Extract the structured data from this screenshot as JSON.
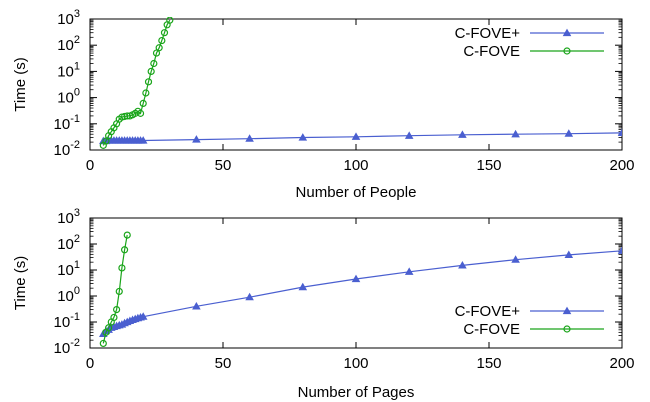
{
  "chart_data": [
    {
      "type": "line",
      "xlabel": "Number of People",
      "ylabel": "Time (s)",
      "yscale": "log",
      "xlim": [
        0,
        200
      ],
      "ylim": [
        0.01,
        1000
      ],
      "x_ticks": [
        "0",
        "50",
        "100",
        "150",
        "200"
      ],
      "y_ticks": [
        {
          "base": "10",
          "exp": "-2"
        },
        {
          "base": "10",
          "exp": "-1"
        },
        {
          "base": "10",
          "exp": "0"
        },
        {
          "base": "10",
          "exp": "1"
        },
        {
          "base": "10",
          "exp": "2"
        },
        {
          "base": "10",
          "exp": "3"
        }
      ],
      "legend_position": "top-right",
      "grid": false,
      "series": [
        {
          "name": "C-FOVE+",
          "color": "#4a5fd0",
          "marker": "triangle",
          "x": [
            5,
            6,
            7,
            8,
            9,
            10,
            11,
            12,
            13,
            14,
            15,
            16,
            17,
            18,
            19,
            20,
            40,
            60,
            80,
            100,
            120,
            140,
            160,
            180,
            200
          ],
          "y": [
            0.022,
            0.022,
            0.023,
            0.023,
            0.023,
            0.023,
            0.023,
            0.023,
            0.023,
            0.023,
            0.023,
            0.023,
            0.023,
            0.023,
            0.023,
            0.023,
            0.025,
            0.027,
            0.03,
            0.032,
            0.035,
            0.038,
            0.04,
            0.042,
            0.045
          ]
        },
        {
          "name": "C-FOVE",
          "color": "#1aa51a",
          "marker": "circle",
          "x": [
            5,
            6,
            7,
            8,
            9,
            10,
            11,
            12,
            13,
            14,
            15,
            16,
            17,
            18,
            19,
            20,
            21,
            22,
            23,
            24,
            25,
            26,
            27,
            28,
            29,
            30
          ],
          "y": [
            0.015,
            0.022,
            0.035,
            0.05,
            0.07,
            0.1,
            0.15,
            0.18,
            0.19,
            0.2,
            0.2,
            0.22,
            0.25,
            0.3,
            0.25,
            0.6,
            1.5,
            4,
            10,
            20,
            50,
            80,
            150,
            300,
            600,
            900
          ]
        }
      ]
    },
    {
      "type": "line",
      "xlabel": "Number of Pages",
      "ylabel": "Time (s)",
      "yscale": "log",
      "xlim": [
        0,
        200
      ],
      "ylim": [
        0.01,
        1000
      ],
      "x_ticks": [
        "0",
        "50",
        "100",
        "150",
        "200"
      ],
      "y_ticks": [
        {
          "base": "10",
          "exp": "-2"
        },
        {
          "base": "10",
          "exp": "-1"
        },
        {
          "base": "10",
          "exp": "0"
        },
        {
          "base": "10",
          "exp": "1"
        },
        {
          "base": "10",
          "exp": "2"
        },
        {
          "base": "10",
          "exp": "3"
        }
      ],
      "legend_position": "bottom-right",
      "grid": false,
      "series": [
        {
          "name": "C-FOVE+",
          "color": "#4a5fd0",
          "marker": "triangle",
          "x": [
            5,
            6,
            7,
            8,
            9,
            10,
            11,
            12,
            13,
            14,
            15,
            16,
            17,
            18,
            19,
            20,
            40,
            60,
            80,
            100,
            120,
            140,
            160,
            180,
            200
          ],
          "y": [
            0.035,
            0.045,
            0.05,
            0.06,
            0.065,
            0.07,
            0.075,
            0.08,
            0.09,
            0.1,
            0.11,
            0.12,
            0.13,
            0.14,
            0.15,
            0.16,
            0.4,
            0.9,
            2.2,
            4.5,
            8.5,
            15,
            25,
            38,
            55
          ]
        },
        {
          "name": "C-FOVE",
          "color": "#1aa51a",
          "marker": "circle",
          "x": [
            5,
            6,
            7,
            8,
            9,
            10,
            11,
            12,
            13,
            14
          ],
          "y": [
            0.015,
            0.04,
            0.06,
            0.1,
            0.15,
            0.3,
            1.5,
            12,
            60,
            220
          ]
        }
      ]
    }
  ]
}
